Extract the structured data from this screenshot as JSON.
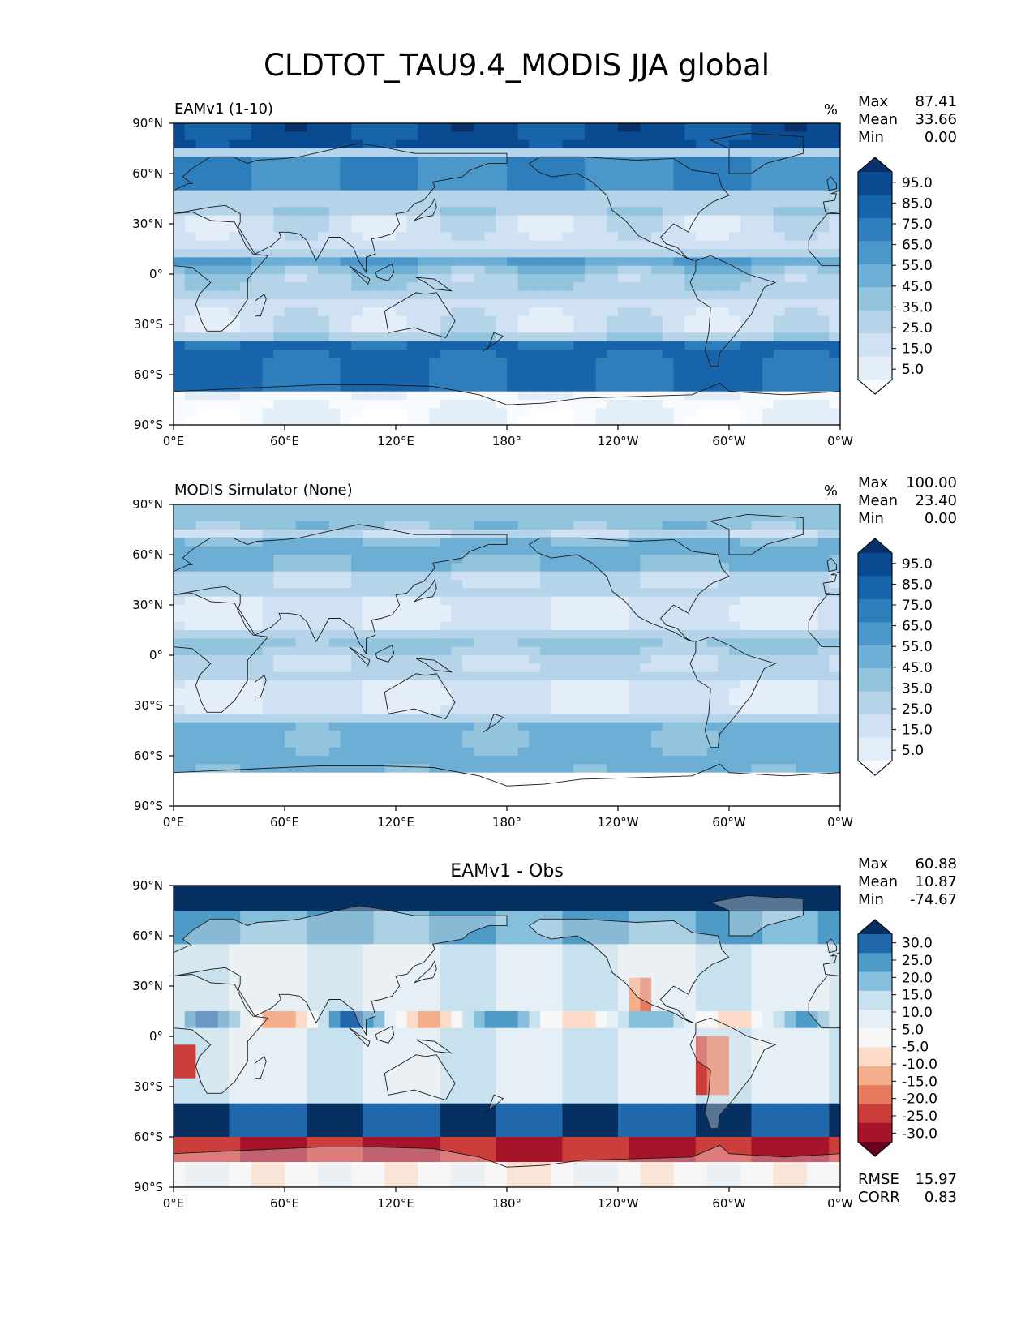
{
  "figure_title": "CLDTOT_TAU9.4_MODIS JJA global",
  "colors": {
    "blues": [
      "#f7fbff",
      "#e3eef9",
      "#cfe1f2",
      "#b5d4e9",
      "#93c4de",
      "#6daed5",
      "#4b97c9",
      "#2f7ebc",
      "#1864aa",
      "#0a4a90",
      "#08306b"
    ],
    "diverging": [
      "#67001f",
      "#a51429",
      "#cc3e3b",
      "#e57a5e",
      "#f5ae8c",
      "#fcdcc9",
      "#f7f7f7",
      "#e5eff5",
      "#c7e1ee",
      "#86bfdc",
      "#4f9bc7",
      "#2167ac",
      "#053061"
    ],
    "ocean_blues_sample": [
      "#cfe1f2",
      "#b5d4e9",
      "#93c4de"
    ]
  },
  "axis": {
    "xticks": [
      "0°E",
      "60°E",
      "120°E",
      "180°",
      "120°W",
      "60°W",
      "0°W"
    ],
    "yticks": [
      "90°N",
      "60°N",
      "30°N",
      "0°",
      "30°S",
      "60°S",
      "90°S"
    ]
  },
  "chart_data": [
    {
      "type": "heatmap",
      "panel": "test",
      "title": "EAMv1 (1-10)",
      "units": "%",
      "stats": {
        "max_label": "Max",
        "max": "87.41",
        "mean_label": "Mean",
        "mean": "33.66",
        "min_label": "Min",
        "min": "0.00"
      },
      "colorbar_levels": [
        "95.0",
        "85.0",
        "75.0",
        "65.0",
        "55.0",
        "45.0",
        "35.0",
        "25.0",
        "15.0",
        "5.0"
      ],
      "xlim": [
        0,
        360
      ],
      "ylim": [
        -90,
        90
      ],
      "palette": "blues"
    },
    {
      "type": "heatmap",
      "panel": "reference",
      "title": "MODIS Simulator (None)",
      "units": "%",
      "stats": {
        "max_label": "Max",
        "max": "100.00",
        "mean_label": "Mean",
        "mean": "23.40",
        "min_label": "Min",
        "min": "0.00"
      },
      "colorbar_levels": [
        "95.0",
        "85.0",
        "75.0",
        "65.0",
        "55.0",
        "45.0",
        "35.0",
        "25.0",
        "15.0",
        "5.0"
      ],
      "xlim": [
        0,
        360
      ],
      "ylim": [
        -90,
        90
      ],
      "palette": "blues"
    },
    {
      "type": "heatmap",
      "panel": "difference",
      "title": "EAMv1 - Obs",
      "units": "",
      "stats": {
        "max_label": "Max",
        "max": "60.88",
        "mean_label": "Mean",
        "mean": "10.87",
        "min_label": "Min",
        "min": "-74.67"
      },
      "colorbar_levels": [
        "30.0",
        "25.0",
        "20.0",
        "15.0",
        "10.0",
        "5.0",
        "-5.0",
        "-10.0",
        "-15.0",
        "-20.0",
        "-25.0",
        "-30.0"
      ],
      "metrics": {
        "rmse_label": "RMSE",
        "rmse": "15.97",
        "corr_label": "CORR",
        "corr": "0.83"
      },
      "xlim": [
        0,
        360
      ],
      "ylim": [
        -90,
        90
      ],
      "palette": "diverging"
    }
  ]
}
